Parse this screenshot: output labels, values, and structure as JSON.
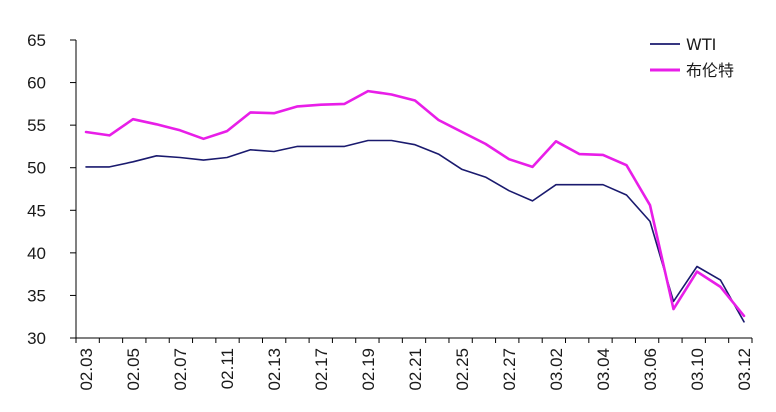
{
  "chart_data": {
    "type": "line",
    "title": "",
    "xlabel": "",
    "ylabel": "",
    "ylim": [
      30,
      65
    ],
    "yticks": [
      30,
      35,
      40,
      45,
      50,
      55,
      60,
      65
    ],
    "y_tick_labels": [
      "30",
      "35",
      "40",
      "45",
      "50",
      "55",
      "60",
      "65"
    ],
    "x_tick_labels": [
      "02.03",
      "02.05",
      "02.07",
      "02.11",
      "02.13",
      "02.17",
      "02.19",
      "02.21",
      "02.25",
      "02.27",
      "03.02",
      "03.04",
      "03.06",
      "03.10",
      "03.12"
    ],
    "grid": false,
    "legend_position": "top-right",
    "series": [
      {
        "name": "WTI",
        "color": "#1a1a6e",
        "values": [
          50.1,
          50.1,
          50.7,
          51.4,
          51.2,
          50.9,
          51.2,
          52.1,
          51.9,
          52.5,
          52.5,
          52.5,
          53.2,
          53.2,
          52.7,
          51.6,
          49.8,
          48.9,
          47.3,
          46.1,
          48.0,
          48.0,
          48.0,
          46.8,
          43.7,
          34.3,
          38.4,
          36.8,
          31.9
        ]
      },
      {
        "name": "布伦特",
        "color": "#e81ee8",
        "values": [
          54.2,
          53.8,
          55.7,
          55.1,
          54.4,
          53.4,
          54.3,
          56.5,
          56.4,
          57.2,
          57.4,
          57.5,
          59.0,
          58.6,
          57.9,
          55.6,
          54.2,
          52.8,
          51.0,
          50.1,
          53.1,
          51.6,
          51.5,
          50.3,
          45.6,
          33.4,
          37.8,
          36.0,
          32.6
        ]
      }
    ]
  }
}
